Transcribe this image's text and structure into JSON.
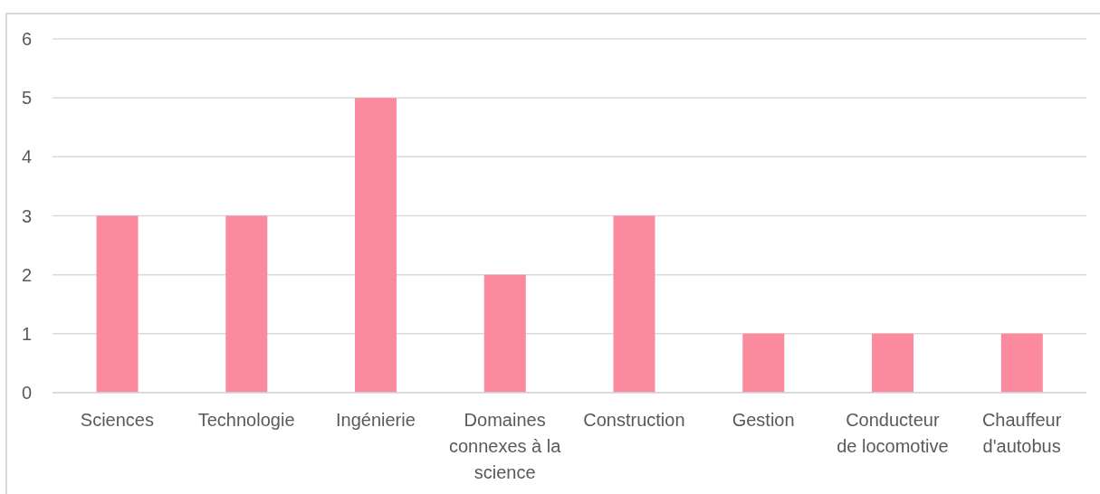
{
  "chart_data": {
    "type": "bar",
    "categories": [
      "Sciences",
      "Technologie",
      "Ingénierie",
      "Domaines connexes à la science",
      "Construction",
      "Gestion",
      "Conducteur de locomotive",
      "Chauffeur d'autobus"
    ],
    "values": [
      3,
      3,
      5,
      2,
      3,
      1,
      1,
      1
    ],
    "color": "#fb8a9e",
    "ylim": [
      0,
      6
    ],
    "yticks": [
      0,
      1,
      2,
      3,
      4,
      5,
      6
    ],
    "grid": "y"
  }
}
